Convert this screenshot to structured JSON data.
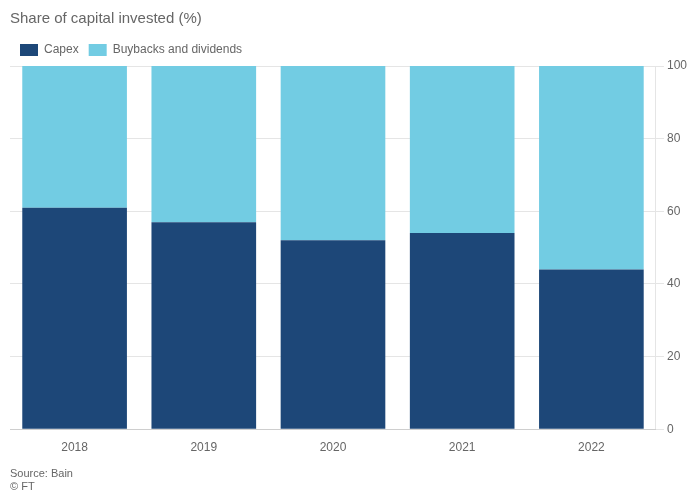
{
  "chart_data": {
    "type": "bar",
    "stacked": true,
    "title": "Share of capital invested (%)",
    "categories": [
      "2018",
      "2019",
      "2020",
      "2021",
      "2022"
    ],
    "series": [
      {
        "name": "Capex",
        "color": "#1d4778",
        "values": [
          61,
          57,
          52,
          54,
          44
        ]
      },
      {
        "name": "Buybacks and dividends",
        "color": "#72cce3",
        "values": [
          39,
          43,
          48,
          46,
          56
        ]
      }
    ],
    "ylim": [
      0,
      100
    ],
    "yticks": [
      0,
      20,
      40,
      60,
      80,
      100
    ],
    "grid": true,
    "legend": "upper left",
    "annotations": [
      "Source: Bain\n© FT"
    ]
  }
}
